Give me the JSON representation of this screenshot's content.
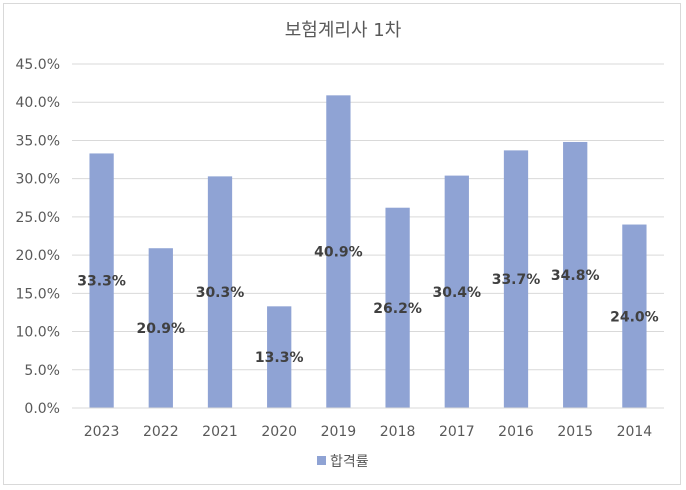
{
  "chart_data": {
    "type": "bar",
    "title": "보험계리사 1차",
    "categories": [
      "2023",
      "2022",
      "2021",
      "2020",
      "2019",
      "2018",
      "2017",
      "2016",
      "2015",
      "2014"
    ],
    "series": [
      {
        "name": "합격률",
        "values": [
          33.3,
          20.9,
          30.3,
          13.3,
          40.9,
          26.2,
          30.4,
          33.7,
          34.8,
          24.0
        ],
        "data_labels": [
          "33.3%",
          "20.9%",
          "30.3%",
          "13.3%",
          "40.9%",
          "26.2%",
          "30.4%",
          "33.7%",
          "34.8%",
          "24.0%"
        ],
        "color": "#8FA3D4"
      }
    ],
    "ylim": [
      0,
      45
    ],
    "y_ticks": [
      0,
      5,
      10,
      15,
      20,
      25,
      30,
      35,
      40,
      45
    ],
    "y_tick_labels": [
      "0.0%",
      "5.0%",
      "10.0%",
      "15.0%",
      "20.0%",
      "25.0%",
      "30.0%",
      "35.0%",
      "40.0%",
      "45.0%"
    ],
    "grid": true,
    "legend": "bottom",
    "xlabel": "",
    "ylabel": ""
  }
}
